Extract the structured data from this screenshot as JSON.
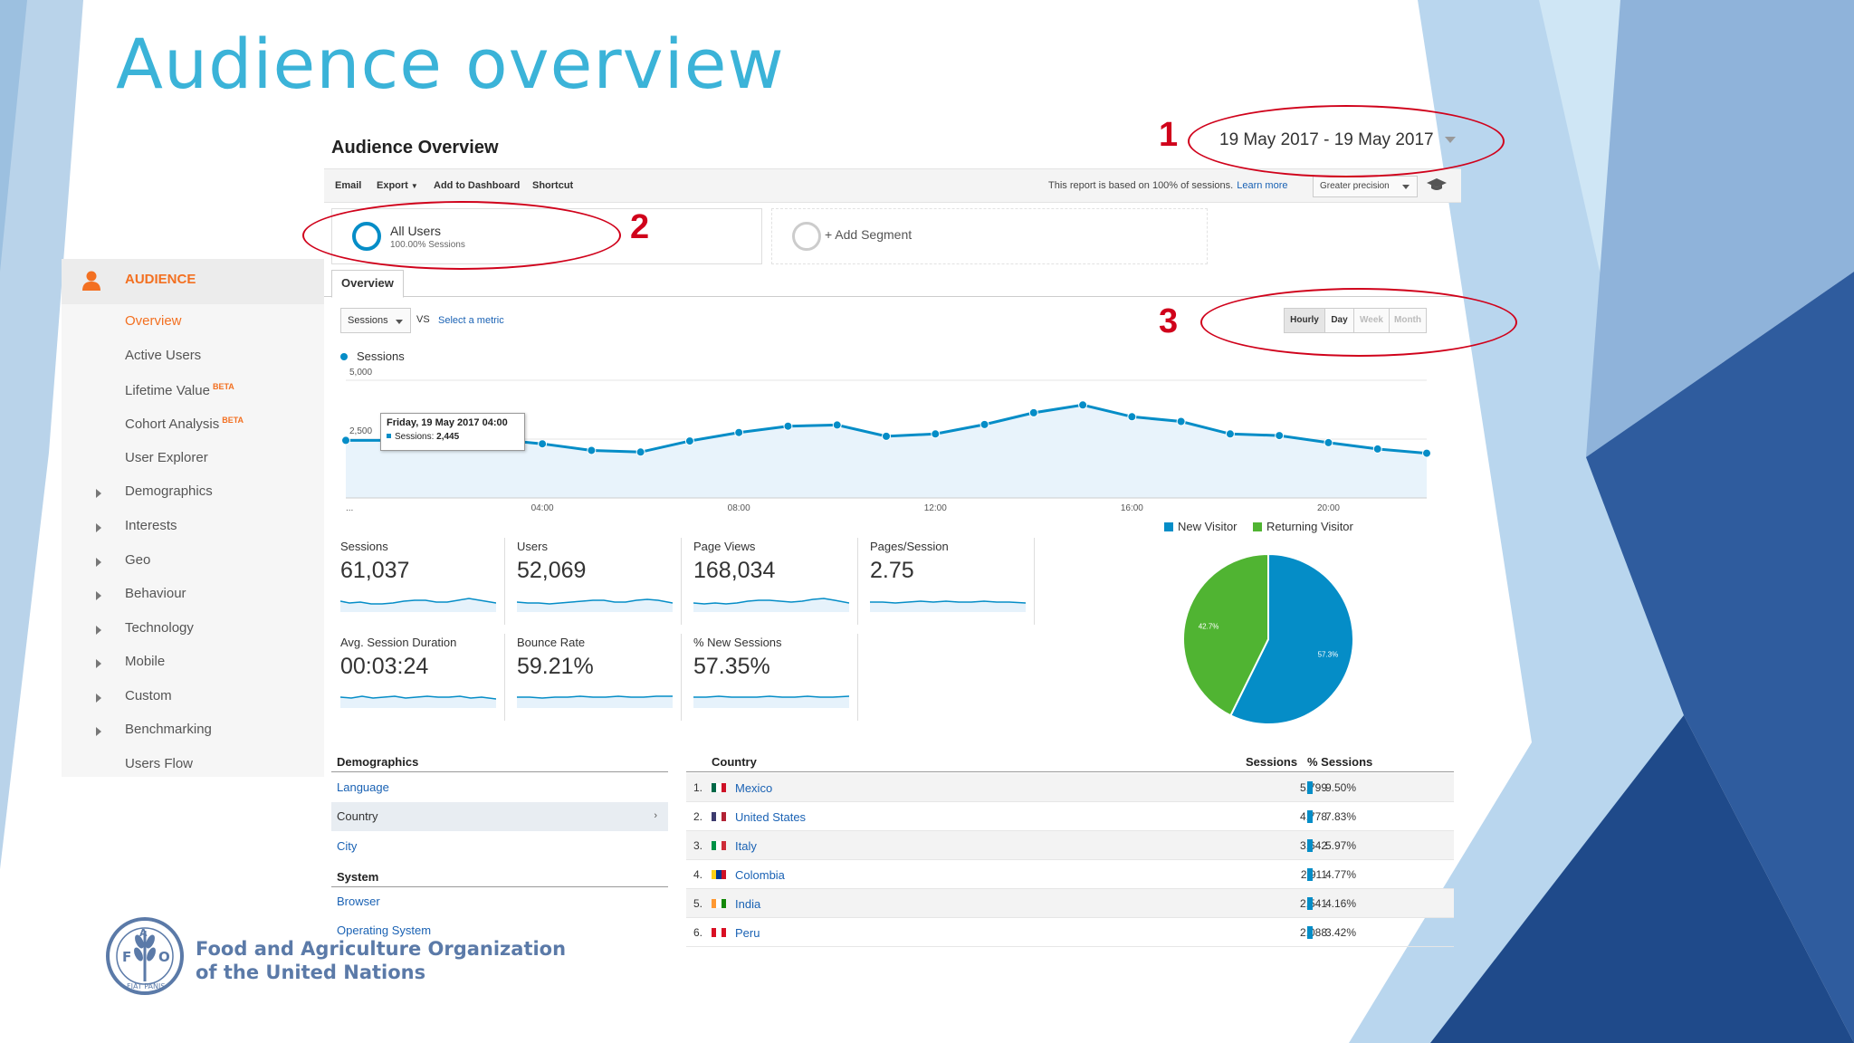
{
  "slide": {
    "title": "Audience overview"
  },
  "header": {
    "title": "Audience Overview",
    "date_range": "19 May 2017 - 19 May 2017"
  },
  "toolbar": {
    "email": "Email",
    "export": "Export",
    "add_to_dashboard": "Add to Dashboard",
    "shortcut": "Shortcut",
    "report_note": "This report is based on 100% of sessions.",
    "learn_more": "Learn more",
    "precision": "Greater precision"
  },
  "segments": {
    "all_users": "All Users",
    "all_users_sub": "100.00% Sessions",
    "add_segment": "+ Add Segment"
  },
  "callouts": {
    "one": "1",
    "two": "2",
    "three": "3"
  },
  "sidebar": {
    "section": "AUDIENCE",
    "items": [
      {
        "label": "Overview",
        "beta": ""
      },
      {
        "label": "Active Users",
        "beta": ""
      },
      {
        "label": "Lifetime Value",
        "beta": "BETA"
      },
      {
        "label": "Cohort Analysis",
        "beta": "BETA"
      },
      {
        "label": "User Explorer",
        "beta": ""
      },
      {
        "label": "Demographics",
        "beta": ""
      },
      {
        "label": "Interests",
        "beta": ""
      },
      {
        "label": "Geo",
        "beta": ""
      },
      {
        "label": "Behaviour",
        "beta": ""
      },
      {
        "label": "Technology",
        "beta": ""
      },
      {
        "label": "Mobile",
        "beta": ""
      },
      {
        "label": "Custom",
        "beta": ""
      },
      {
        "label": "Benchmarking",
        "beta": ""
      },
      {
        "label": "Users Flow",
        "beta": ""
      }
    ]
  },
  "tabs": {
    "overview": "Overview"
  },
  "controls": {
    "metric": "Sessions",
    "vs": "VS",
    "select_metric": "Select a metric",
    "granularity": [
      "Hourly",
      "Day",
      "Week",
      "Month"
    ]
  },
  "chart_data": [
    {
      "type": "line",
      "series": [
        {
          "name": "Sessions",
          "values": [
            2445,
            2445,
            2445,
            2500,
            2300,
            2020,
            1950,
            2420,
            2780,
            3050,
            3100,
            2620,
            2720,
            3120,
            3620,
            3950,
            3450,
            3250,
            2720,
            2650,
            2350,
            2080,
            1900
          ]
        }
      ],
      "x": [
        0,
        1,
        2,
        3,
        4,
        5,
        6,
        7,
        8,
        9,
        10,
        11,
        12,
        13,
        14,
        15,
        16,
        17,
        18,
        19,
        20,
        21,
        22
      ],
      "x_tick_labels": [
        "...",
        "04:00",
        "08:00",
        "12:00",
        "16:00",
        "20:00"
      ],
      "y_tick_labels": [
        "5,000",
        "2,500"
      ],
      "ylim": [
        0,
        5000
      ],
      "legend": "top-left",
      "tooltip": {
        "title": "Friday, 19 May 2017 04:00",
        "label": "Sessions:",
        "value": "2,445"
      },
      "color": "#058dc7"
    },
    {
      "type": "pie",
      "labels": [
        "New Visitor",
        "Returning Visitor"
      ],
      "values": [
        57.3,
        42.7
      ],
      "data_labels": [
        "57.3%",
        "42.7%"
      ],
      "colors": [
        "#058dc7",
        "#50b432"
      ],
      "legend": "top"
    }
  ],
  "scorecards": [
    {
      "label": "Sessions",
      "value": "61,037"
    },
    {
      "label": "Users",
      "value": "52,069"
    },
    {
      "label": "Page Views",
      "value": "168,034"
    },
    {
      "label": "Pages/Session",
      "value": "2.75"
    },
    {
      "label": "Avg. Session Duration",
      "value": "00:03:24"
    },
    {
      "label": "Bounce Rate",
      "value": "59.21%"
    },
    {
      "label": "% New Sessions",
      "value": "57.35%"
    }
  ],
  "demographics": {
    "heading": "Demographics",
    "language": "Language",
    "country": "Country",
    "city": "City",
    "system_heading": "System",
    "browser": "Browser",
    "os": "Operating System"
  },
  "country_table": {
    "headers": {
      "country": "Country",
      "sessions": "Sessions",
      "pct": "% Sessions"
    },
    "rows": [
      {
        "idx": "1.",
        "name": "Mexico",
        "sessions": "5,799",
        "pct": "9.50%",
        "flag": [
          "#006847",
          "#ffffff",
          "#ce1126"
        ]
      },
      {
        "idx": "2.",
        "name": "United States",
        "sessions": "4,778",
        "pct": "7.83%",
        "flag": [
          "#3c3b6e",
          "#ffffff",
          "#b22234"
        ]
      },
      {
        "idx": "3.",
        "name": "Italy",
        "sessions": "3,642",
        "pct": "5.97%",
        "flag": [
          "#009246",
          "#ffffff",
          "#ce2b37"
        ]
      },
      {
        "idx": "4.",
        "name": "Colombia",
        "sessions": "2,911",
        "pct": "4.77%",
        "flag": [
          "#fcd116",
          "#003893",
          "#ce1126"
        ]
      },
      {
        "idx": "5.",
        "name": "India",
        "sessions": "2,541",
        "pct": "4.16%",
        "flag": [
          "#ff9933",
          "#ffffff",
          "#138808"
        ]
      },
      {
        "idx": "6.",
        "name": "Peru",
        "sessions": "2,088",
        "pct": "3.42%",
        "flag": [
          "#d91023",
          "#ffffff",
          "#d91023"
        ]
      }
    ]
  },
  "footer": {
    "org_line1": "Food and Agriculture Organization",
    "org_line2": "of the United Nations",
    "logo_text": "FIAT PANIS"
  }
}
